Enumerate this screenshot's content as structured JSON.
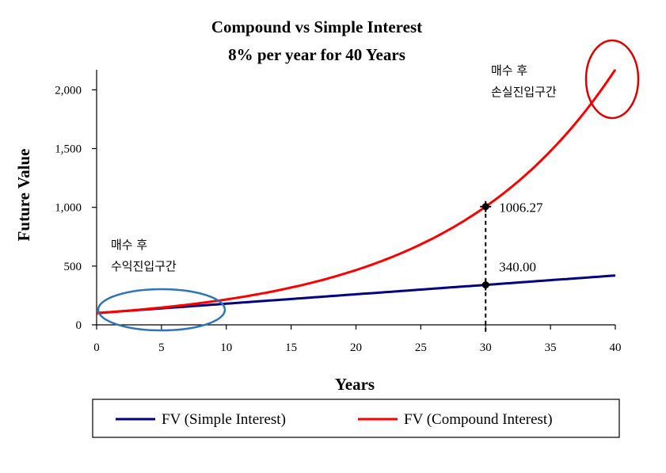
{
  "chart_data": {
    "type": "line",
    "title": "Compound vs Simple Interest",
    "subtitle": "8% per year for 40 Years",
    "xlabel": "Years",
    "ylabel": "Future Value",
    "xlim": [
      0,
      40
    ],
    "ylim": [
      0,
      2200
    ],
    "x_ticks": [
      0,
      5,
      10,
      15,
      20,
      25,
      30,
      35,
      40
    ],
    "y_ticks": [
      0,
      500,
      1000,
      1500,
      2000
    ],
    "y_tick_labels": [
      "0",
      "500",
      "1,000",
      "1,500",
      "2,000"
    ],
    "grid": false,
    "legend_position": "bottom",
    "principal": 100,
    "rate": 0.08,
    "years": 40,
    "series": [
      {
        "name": "FV (Simple Interest)",
        "color": "#000080",
        "x": [
          0,
          5,
          10,
          15,
          20,
          25,
          30,
          35,
          40
        ],
        "values": [
          100,
          140,
          180,
          220,
          260,
          300,
          340,
          380,
          420
        ]
      },
      {
        "name": "FV (Compound Interest)",
        "color": "#ff0000",
        "x": [
          0,
          5,
          10,
          15,
          20,
          25,
          30,
          35,
          40
        ],
        "values": [
          100,
          146.93,
          215.89,
          317.22,
          466.1,
          684.85,
          1006.27,
          1478.53,
          2172.45
        ]
      }
    ],
    "markers": [
      {
        "x": 30,
        "y": 1006.27,
        "label": "1006.27"
      },
      {
        "x": 30,
        "y": 340.0,
        "label": "340.00"
      }
    ],
    "annotations": [
      {
        "lines": [
          "매수 후",
          "수익진입구간"
        ],
        "highlight": "blue-ellipse"
      },
      {
        "lines": [
          "매수 후",
          "손실진입구간"
        ],
        "highlight": "red-circle"
      }
    ],
    "colors": {
      "simple": "#000080",
      "compound": "#ff0000",
      "ellipse_blue": "#2e75b6",
      "circle_red": "#e00000"
    }
  }
}
